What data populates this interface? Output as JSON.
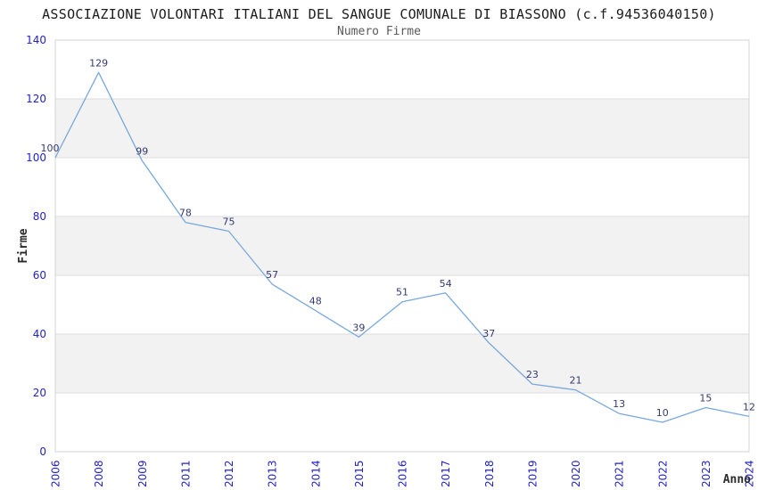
{
  "chart_data": {
    "type": "line",
    "title": "ASSOCIAZIONE VOLONTARI ITALIANI DEL SANGUE COMUNALE DI BIASSONO (c.f.94536040150)",
    "subtitle": "Numero Firme",
    "xlabel": "Anno",
    "ylabel": "Firme",
    "categories": [
      "2006",
      "2008",
      "2009",
      "2011",
      "2012",
      "2013",
      "2014",
      "2015",
      "2016",
      "2017",
      "2018",
      "2019",
      "2020",
      "2021",
      "2022",
      "2023",
      "2024"
    ],
    "values": [
      100,
      129,
      99,
      78,
      75,
      57,
      48,
      39,
      51,
      54,
      37,
      23,
      21,
      13,
      10,
      15,
      12
    ],
    "ylim": [
      0,
      140
    ],
    "yticks": [
      0,
      20,
      40,
      60,
      80,
      100,
      120,
      140
    ],
    "grid": "horizontal",
    "shaded_bands": [
      [
        20,
        40
      ],
      [
        60,
        80
      ],
      [
        100,
        120
      ]
    ],
    "legend": "none",
    "colors": {
      "line": "#79a8dc",
      "tick_label": "#2222cc",
      "data_label": "#343a70",
      "band_fill": "#f2f2f2",
      "gridline": "#dcdcdc",
      "plot_border": "#d3d3d3",
      "title": "#1c1c1c",
      "subtitle": "#5a5a5a",
      "axis_name": "#2b2b2b",
      "background": "#ffffff"
    }
  }
}
